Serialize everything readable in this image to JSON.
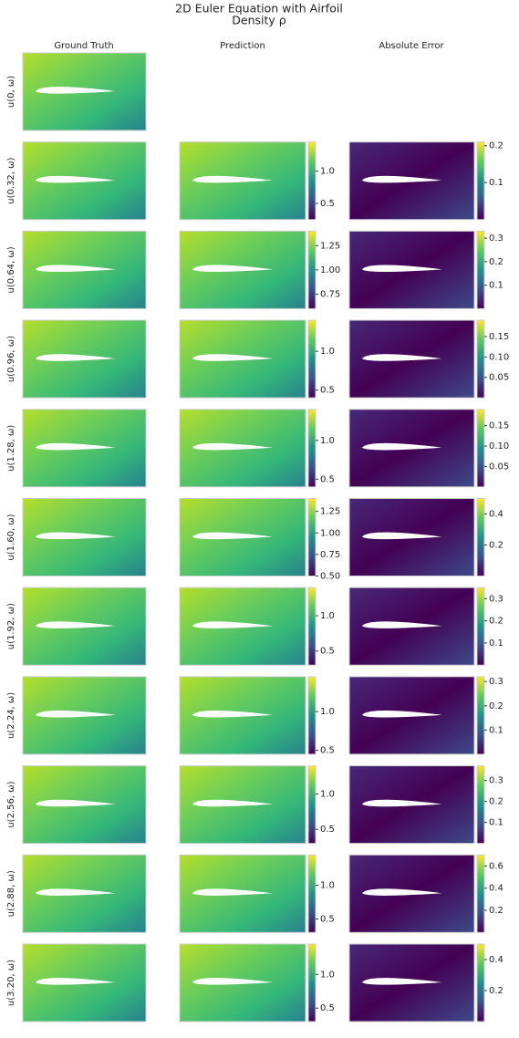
{
  "title": "2D Euler Equation with Airfoil",
  "subtitle": "Density ρ",
  "columns": [
    "Ground Truth",
    "Prediction",
    "Absolute Error"
  ],
  "rows": [
    {
      "label": "u(0, ω)"
    },
    {
      "label": "u(0.32, ω)",
      "pred_colorbar": {
        "lim": [
          0.25,
          1.45
        ],
        "ticks": [
          0.5,
          {
            "value": 1,
            "label": "1.0"
          }
        ]
      },
      "error_colorbar": {
        "lim": [
          0,
          0.21
        ],
        "ticks": [
          0.1,
          0.2
        ]
      }
    },
    {
      "label": "u(0.64, ω)",
      "pred_colorbar": {
        "lim": [
          0.6,
          1.4
        ],
        "ticks": [
          0.75,
          {
            "value": 1,
            "label": "1.00"
          },
          1.25
        ]
      },
      "error_colorbar": {
        "lim": [
          0,
          0.33
        ],
        "ticks": [
          0.1,
          0.2,
          0.3
        ]
      }
    },
    {
      "label": "u(0.96, ω)",
      "pred_colorbar": {
        "lim": [
          0.4,
          1.4
        ],
        "ticks": [
          0.5,
          {
            "value": 1,
            "label": "1.0"
          }
        ]
      },
      "error_colorbar": {
        "lim": [
          0,
          0.19
        ],
        "ticks": [
          0.05,
          {
            "value": 0.1,
            "label": "0.10"
          },
          0.15
        ]
      }
    },
    {
      "label": "u(1.28, ω)",
      "pred_colorbar": {
        "lim": [
          0.4,
          1.4
        ],
        "ticks": [
          0.5,
          {
            "value": 1,
            "label": "1.0"
          }
        ]
      },
      "error_colorbar": {
        "lim": [
          0,
          0.19
        ],
        "ticks": [
          0.05,
          {
            "value": 0.1,
            "label": "0.10"
          },
          0.15
        ]
      }
    },
    {
      "label": "u(1.60, ω)",
      "pred_colorbar": {
        "lim": [
          0.5,
          1.4
        ],
        "ticks": [
          {
            "value": 0.5,
            "label": "0.50"
          },
          0.75,
          {
            "value": 1,
            "label": "1.00"
          },
          1.25
        ]
      },
      "error_colorbar": {
        "lim": [
          0,
          0.5
        ],
        "ticks": [
          0.2,
          0.4
        ]
      }
    },
    {
      "label": "u(1.92, ω)",
      "pred_colorbar": {
        "lim": [
          0.3,
          1.4
        ],
        "ticks": [
          0.5,
          {
            "value": 1,
            "label": "1.0"
          }
        ]
      },
      "error_colorbar": {
        "lim": [
          0,
          0.35
        ],
        "ticks": [
          0.1,
          0.2,
          0.3
        ]
      }
    },
    {
      "label": "u(2.24, ω)",
      "pred_colorbar": {
        "lim": [
          0.45,
          1.45
        ],
        "ticks": [
          0.5,
          {
            "value": 1,
            "label": "1.0"
          }
        ]
      },
      "error_colorbar": {
        "lim": [
          0,
          0.32
        ],
        "ticks": [
          0.1,
          0.2,
          0.3
        ]
      }
    },
    {
      "label": "u(2.56, ω)",
      "pred_colorbar": {
        "lim": [
          0.3,
          1.4
        ],
        "ticks": [
          0.5,
          {
            "value": 1,
            "label": "1.0"
          }
        ]
      },
      "error_colorbar": {
        "lim": [
          0,
          0.37
        ],
        "ticks": [
          0.1,
          0.2,
          0.3
        ]
      }
    },
    {
      "label": "u(2.88, ω)",
      "pred_colorbar": {
        "lim": [
          0.3,
          1.45
        ],
        "ticks": [
          0.5,
          {
            "value": 1,
            "label": "1.0"
          }
        ]
      },
      "error_colorbar": {
        "lim": [
          0,
          0.7
        ],
        "ticks": [
          0.2,
          0.4,
          0.6
        ]
      }
    },
    {
      "label": "u(3.20, ω)",
      "pred_colorbar": {
        "lim": [
          0.3,
          1.45
        ],
        "ticks": [
          0.5,
          {
            "value": 1,
            "label": "1.0"
          }
        ]
      },
      "error_colorbar": {
        "lim": [
          0,
          0.5
        ],
        "ticks": [
          0.2,
          0.4
        ]
      }
    }
  ]
}
